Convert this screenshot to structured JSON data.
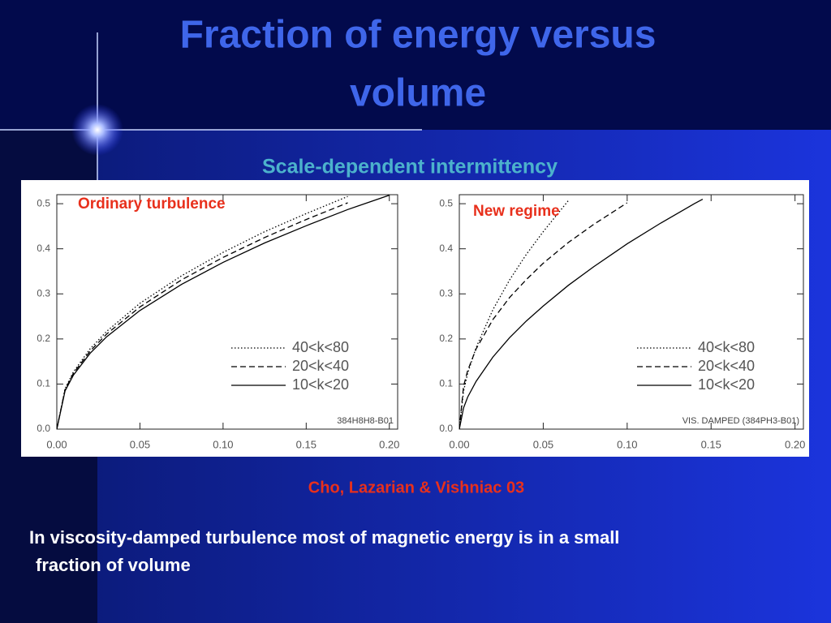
{
  "title": [
    "Fraction of energy versus",
    "volume"
  ],
  "subtitle": "Scale-dependent intermittency",
  "citation": "Cho, Lazarian & Vishniac 03",
  "body": [
    "In viscosity-damped turbulence most of magnetic energy is in a small",
    "fraction of volume"
  ],
  "chart_data": [
    {
      "type": "line",
      "label": "Ordinary turbulence",
      "note": "384H8H8-B01",
      "x": [
        0,
        0.005,
        0.01,
        0.02,
        0.03,
        0.05,
        0.075,
        0.1,
        0.125,
        0.15,
        0.175,
        0.2
      ],
      "series": [
        {
          "name": "40<k<80",
          "color": "#000000",
          "dash": "dotted",
          "values": [
            0,
            0.09,
            0.127,
            0.178,
            0.217,
            0.279,
            0.34,
            0.392,
            0.438,
            0.478,
            0.516,
            null
          ]
        },
        {
          "name": "20<k<40",
          "color": "#000000",
          "dash": "dashed",
          "values": [
            0,
            0.088,
            0.124,
            0.173,
            0.211,
            0.271,
            0.331,
            0.381,
            0.425,
            0.465,
            0.502,
            null
          ]
        },
        {
          "name": "10<k<20",
          "color": "#000000",
          "dash": "solid",
          "values": [
            0,
            0.085,
            0.12,
            0.168,
            0.205,
            0.263,
            0.321,
            0.37,
            0.413,
            0.451,
            0.487,
            0.519
          ]
        }
      ],
      "xlim": [
        0,
        0.205
      ],
      "ylim": [
        0,
        0.52
      ],
      "xticks": [
        {
          "value": 0,
          "label": "0.00"
        },
        {
          "value": 0.05,
          "label": "0.05"
        },
        {
          "value": 0.1,
          "label": "0.10"
        },
        {
          "value": 0.15,
          "label": "0.15"
        },
        {
          "value": 0.2,
          "label": "0.20"
        }
      ],
      "yticks": [
        {
          "value": 0,
          "label": "0.0"
        },
        0.1,
        0.2,
        0.3,
        0.4,
        0.5
      ],
      "legend": "lower right"
    },
    {
      "type": "line",
      "label": "New regime",
      "note": "VIS. DAMPED (384PH3-B01)",
      "x": [
        0,
        0.0025,
        0.005,
        0.01,
        0.02,
        0.03,
        0.04,
        0.05,
        0.065,
        0.08,
        0.1,
        0.12,
        0.14,
        0.145
      ],
      "series": [
        {
          "name": "40<k<80",
          "color": "#000000",
          "dash": "dotted",
          "values": [
            0,
            0.084,
            0.124,
            0.181,
            0.265,
            0.331,
            0.388,
            0.438,
            0.507,
            null,
            null,
            null,
            null,
            null
          ]
        },
        {
          "name": "20<k<40",
          "color": "#000000",
          "dash": "dashed",
          "values": [
            0,
            0.095,
            0.13,
            0.178,
            0.243,
            0.292,
            0.332,
            0.368,
            0.414,
            0.454,
            0.502,
            null,
            null,
            null
          ]
        },
        {
          "name": "10<k<20",
          "color": "#000000",
          "dash": "solid",
          "values": [
            0,
            0.047,
            0.071,
            0.106,
            0.16,
            0.203,
            0.24,
            0.273,
            0.319,
            0.36,
            0.411,
            0.457,
            0.5,
            0.51
          ]
        }
      ],
      "xlim": [
        0,
        0.205
      ],
      "ylim": [
        0,
        0.52
      ],
      "xticks": [
        {
          "value": 0,
          "label": "0.00"
        },
        {
          "value": 0.05,
          "label": "0.05"
        },
        {
          "value": 0.1,
          "label": "0.10"
        },
        {
          "value": 0.15,
          "label": "0.15"
        },
        {
          "value": 0.2,
          "label": "0.20"
        }
      ],
      "yticks": [
        {
          "value": 0,
          "label": "0.0"
        },
        0.1,
        0.2,
        0.3,
        0.4,
        0.5
      ],
      "legend": "lower right"
    }
  ]
}
